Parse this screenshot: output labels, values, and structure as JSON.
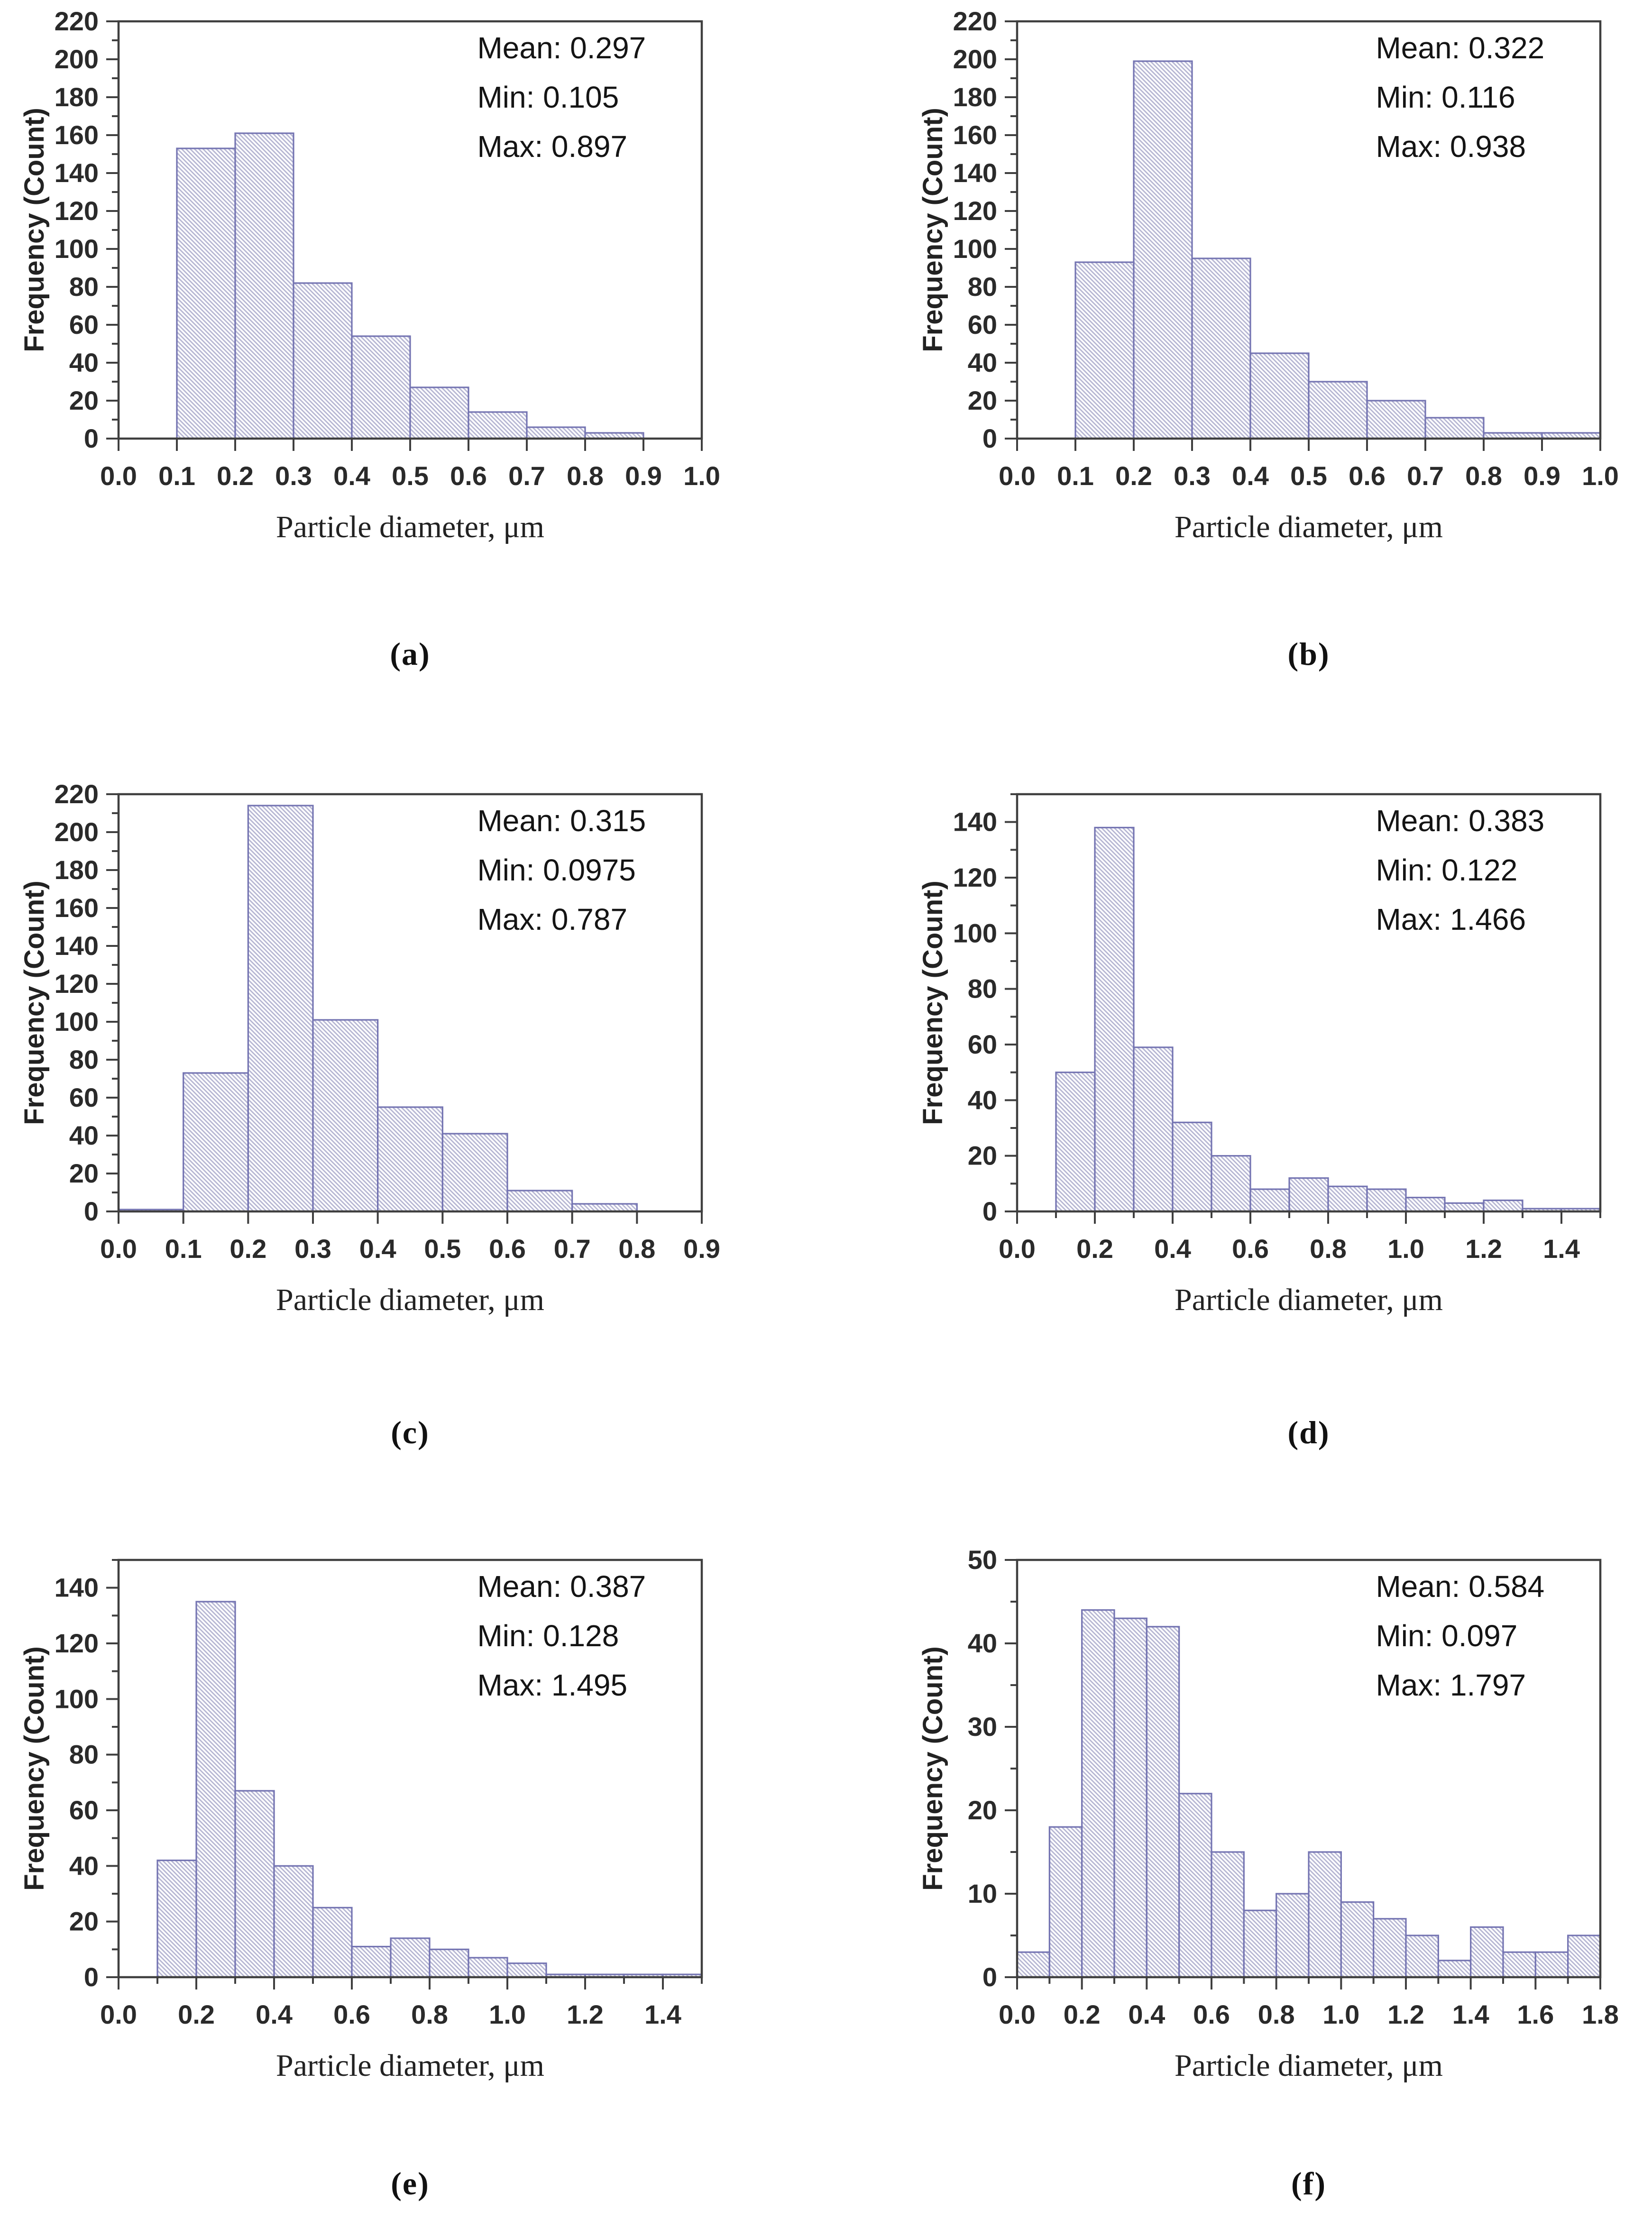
{
  "figure": {
    "description": "Six particle-size distribution histograms",
    "panel_ids": [
      "a",
      "b",
      "c",
      "d",
      "e",
      "f"
    ]
  },
  "colors": {
    "background": "#ffffff",
    "axis": "#3f3f3f",
    "tick_label": "#2a2a2a",
    "axis_label": "#222222",
    "bar_edge": "#7474b2",
    "bar_hatch": "#b6b6d2",
    "bar_fill": "#fdfdff",
    "annotation": "#141414",
    "caption": "#111111"
  },
  "chart_data": [
    {
      "type": "bar",
      "panel_label": "(a)",
      "xlabel": "Particle diameter, μm",
      "ylabel": "Frequency (Count)",
      "annotations": [
        "Mean: 0.297",
        "Min: 0.105",
        "Max: 0.897"
      ],
      "bin_start": 0.1,
      "bin_width": 0.1,
      "values": [
        153,
        161,
        82,
        54,
        27,
        14,
        6,
        3
      ],
      "xlim": [
        0.0,
        1.0
      ],
      "ylim": [
        0,
        220
      ],
      "x_major_step": 0.1,
      "x_minor_step": null,
      "x_tick_max": 1.0,
      "y_major_step": 20,
      "y_minor_step": 10,
      "y_tick_max": 220,
      "grid": false,
      "legend": null
    },
    {
      "type": "bar",
      "panel_label": "(b)",
      "xlabel": "Particle diameter, μm",
      "ylabel": "Frequency (Count)",
      "annotations": [
        "Mean: 0.322",
        "Min: 0.116",
        "Max: 0.938"
      ],
      "bin_start": 0.1,
      "bin_width": 0.1,
      "values": [
        93,
        199,
        95,
        45,
        30,
        20,
        11,
        3,
        3
      ],
      "xlim": [
        0.0,
        1.0
      ],
      "ylim": [
        0,
        220
      ],
      "x_major_step": 0.1,
      "x_minor_step": null,
      "x_tick_max": 1.0,
      "y_major_step": 20,
      "y_minor_step": 10,
      "y_tick_max": 220,
      "grid": false,
      "legend": null
    },
    {
      "type": "bar",
      "panel_label": "(c)",
      "xlabel": "Particle diameter, μm",
      "ylabel": "Frequency (Count)",
      "annotations": [
        "Mean: 0.315",
        "Min: 0.0975",
        "Max: 0.787"
      ],
      "bin_start": 0.0,
      "bin_width": 0.1,
      "values": [
        1,
        73,
        214,
        101,
        55,
        41,
        11,
        4
      ],
      "xlim": [
        0.0,
        0.9
      ],
      "ylim": [
        0,
        220
      ],
      "x_major_step": 0.1,
      "x_minor_step": null,
      "x_tick_max": 0.9,
      "y_major_step": 20,
      "y_minor_step": 10,
      "y_tick_max": 220,
      "grid": false,
      "legend": null
    },
    {
      "type": "bar",
      "panel_label": "(d)",
      "xlabel": "Particle diameter, μm",
      "ylabel": "Frequency (Count)",
      "annotations": [
        "Mean: 0.383",
        "Min: 0.122",
        "Max: 1.466"
      ],
      "bin_start": 0.1,
      "bin_width": 0.1,
      "values": [
        50,
        138,
        59,
        32,
        20,
        8,
        12,
        9,
        8,
        5,
        3,
        4,
        1,
        1
      ],
      "xlim": [
        0.0,
        1.5
      ],
      "ylim": [
        0,
        150
      ],
      "x_major_step": 0.2,
      "x_minor_step": 0.1,
      "x_tick_max": 1.4,
      "y_major_step": 20,
      "y_minor_step": 10,
      "y_tick_max": 140,
      "grid": false,
      "legend": null
    },
    {
      "type": "bar",
      "panel_label": "(e)",
      "xlabel": "Particle diameter, μm",
      "ylabel": "Frequency (Count)",
      "annotations": [
        "Mean: 0.387",
        "Min: 0.128",
        "Max: 1.495"
      ],
      "bin_start": 0.1,
      "bin_width": 0.1,
      "values": [
        42,
        135,
        67,
        40,
        25,
        11,
        14,
        10,
        7,
        5,
        1,
        1,
        1,
        1
      ],
      "xlim": [
        0.0,
        1.5
      ],
      "ylim": [
        0,
        150
      ],
      "x_major_step": 0.2,
      "x_minor_step": 0.1,
      "x_tick_max": 1.4,
      "y_major_step": 20,
      "y_minor_step": 10,
      "y_tick_max": 140,
      "grid": false,
      "legend": null
    },
    {
      "type": "bar",
      "panel_label": "(f)",
      "xlabel": "Particle diameter, μm",
      "ylabel": "Frequency (Count)",
      "annotations": [
        "Mean: 0.584",
        "Min: 0.097",
        "Max: 1.797"
      ],
      "bin_start": 0.0,
      "bin_width": 0.1,
      "values": [
        3,
        18,
        44,
        43,
        42,
        22,
        15,
        8,
        10,
        15,
        9,
        7,
        5,
        2,
        6,
        3,
        3,
        5
      ],
      "xlim": [
        0.0,
        1.8
      ],
      "ylim": [
        0,
        50
      ],
      "x_major_step": 0.2,
      "x_minor_step": 0.1,
      "x_tick_max": 1.8,
      "y_major_step": 10,
      "y_minor_step": 5,
      "y_tick_max": 50,
      "grid": false,
      "legend": null
    }
  ]
}
